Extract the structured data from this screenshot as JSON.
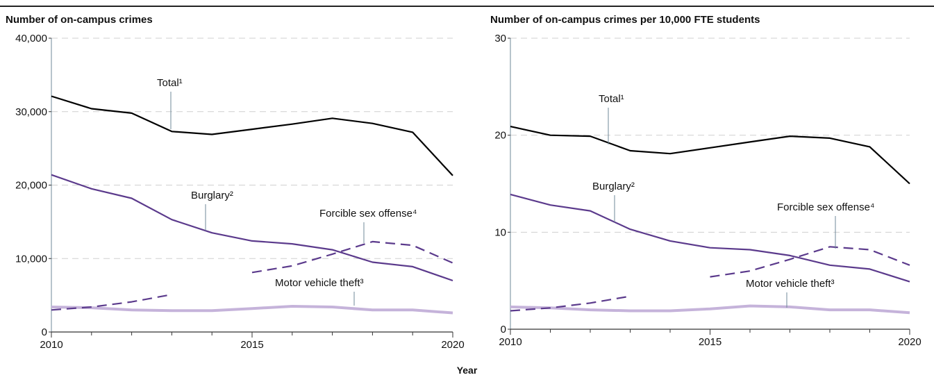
{
  "x_axis_title": "Year",
  "chart_data": [
    {
      "type": "line",
      "title": "Number of on-campus crimes",
      "xlabel": "Year",
      "ylabel": "",
      "xlim": [
        2010,
        2020
      ],
      "ylim": [
        0,
        40000
      ],
      "x_ticks": [
        "2010",
        "2015",
        "2020"
      ],
      "y_ticks": [
        "0",
        "10,000",
        "20,000",
        "30,000",
        "40,000"
      ],
      "grid": "horizontal dashed",
      "x": [
        2010,
        2011,
        2012,
        2013,
        2014,
        2015,
        2016,
        2017,
        2018,
        2019,
        2020
      ],
      "series": [
        {
          "name": "Total",
          "sup": "1",
          "color": "#000000",
          "style": "solid",
          "values": [
            32100,
            30400,
            29800,
            27300,
            26900,
            27600,
            28300,
            29100,
            28400,
            27200,
            21300
          ]
        },
        {
          "name": "Burglary",
          "sup": "2",
          "color": "#5b3a8c",
          "style": "solid",
          "values": [
            21400,
            19500,
            18200,
            15300,
            13500,
            12400,
            12000,
            11200,
            9500,
            8900,
            7000
          ]
        },
        {
          "name": "Forcible sex offense",
          "sup": "4",
          "color": "#5b3a8c",
          "style": "dashed",
          "values": [
            3000,
            3400,
            4100,
            5100,
            null,
            8100,
            9000,
            10600,
            12300,
            11800,
            9400
          ]
        },
        {
          "name": "Motor vehicle theft",
          "sup": "3",
          "color": "#c5b3da",
          "style": "solid",
          "values": [
            3400,
            3300,
            3000,
            2900,
            2900,
            3200,
            3500,
            3400,
            3000,
            3000,
            2600
          ]
        }
      ]
    },
    {
      "type": "line",
      "title": "Number of on-campus crimes per 10,000 FTE students",
      "xlabel": "Year",
      "ylabel": "",
      "xlim": [
        2010,
        2020
      ],
      "ylim": [
        0,
        30
      ],
      "x_ticks": [
        "2010",
        "2015",
        "2020"
      ],
      "y_ticks": [
        "0",
        "10",
        "20",
        "30"
      ],
      "grid": "horizontal dashed",
      "x": [
        2010,
        2011,
        2012,
        2013,
        2014,
        2015,
        2016,
        2017,
        2018,
        2019,
        2020
      ],
      "series": [
        {
          "name": "Total",
          "sup": "1",
          "color": "#000000",
          "style": "solid",
          "values": [
            20.9,
            20.0,
            19.9,
            18.4,
            18.1,
            18.7,
            19.3,
            19.9,
            19.7,
            18.8,
            15.0
          ]
        },
        {
          "name": "Burglary",
          "sup": "2",
          "color": "#5b3a8c",
          "style": "solid",
          "values": [
            13.9,
            12.8,
            12.2,
            10.3,
            9.1,
            8.4,
            8.2,
            7.6,
            6.6,
            6.2,
            4.9
          ]
        },
        {
          "name": "Forcible sex offense",
          "sup": "4",
          "color": "#5b3a8c",
          "style": "dashed",
          "values": [
            1.9,
            2.2,
            2.7,
            3.4,
            null,
            5.4,
            6.0,
            7.2,
            8.5,
            8.2,
            6.6
          ]
        },
        {
          "name": "Motor vehicle theft",
          "sup": "3",
          "color": "#c5b3da",
          "style": "solid",
          "values": [
            2.3,
            2.2,
            2.0,
            1.9,
            1.9,
            2.1,
            2.4,
            2.3,
            2.0,
            2.0,
            1.7
          ]
        }
      ]
    }
  ]
}
